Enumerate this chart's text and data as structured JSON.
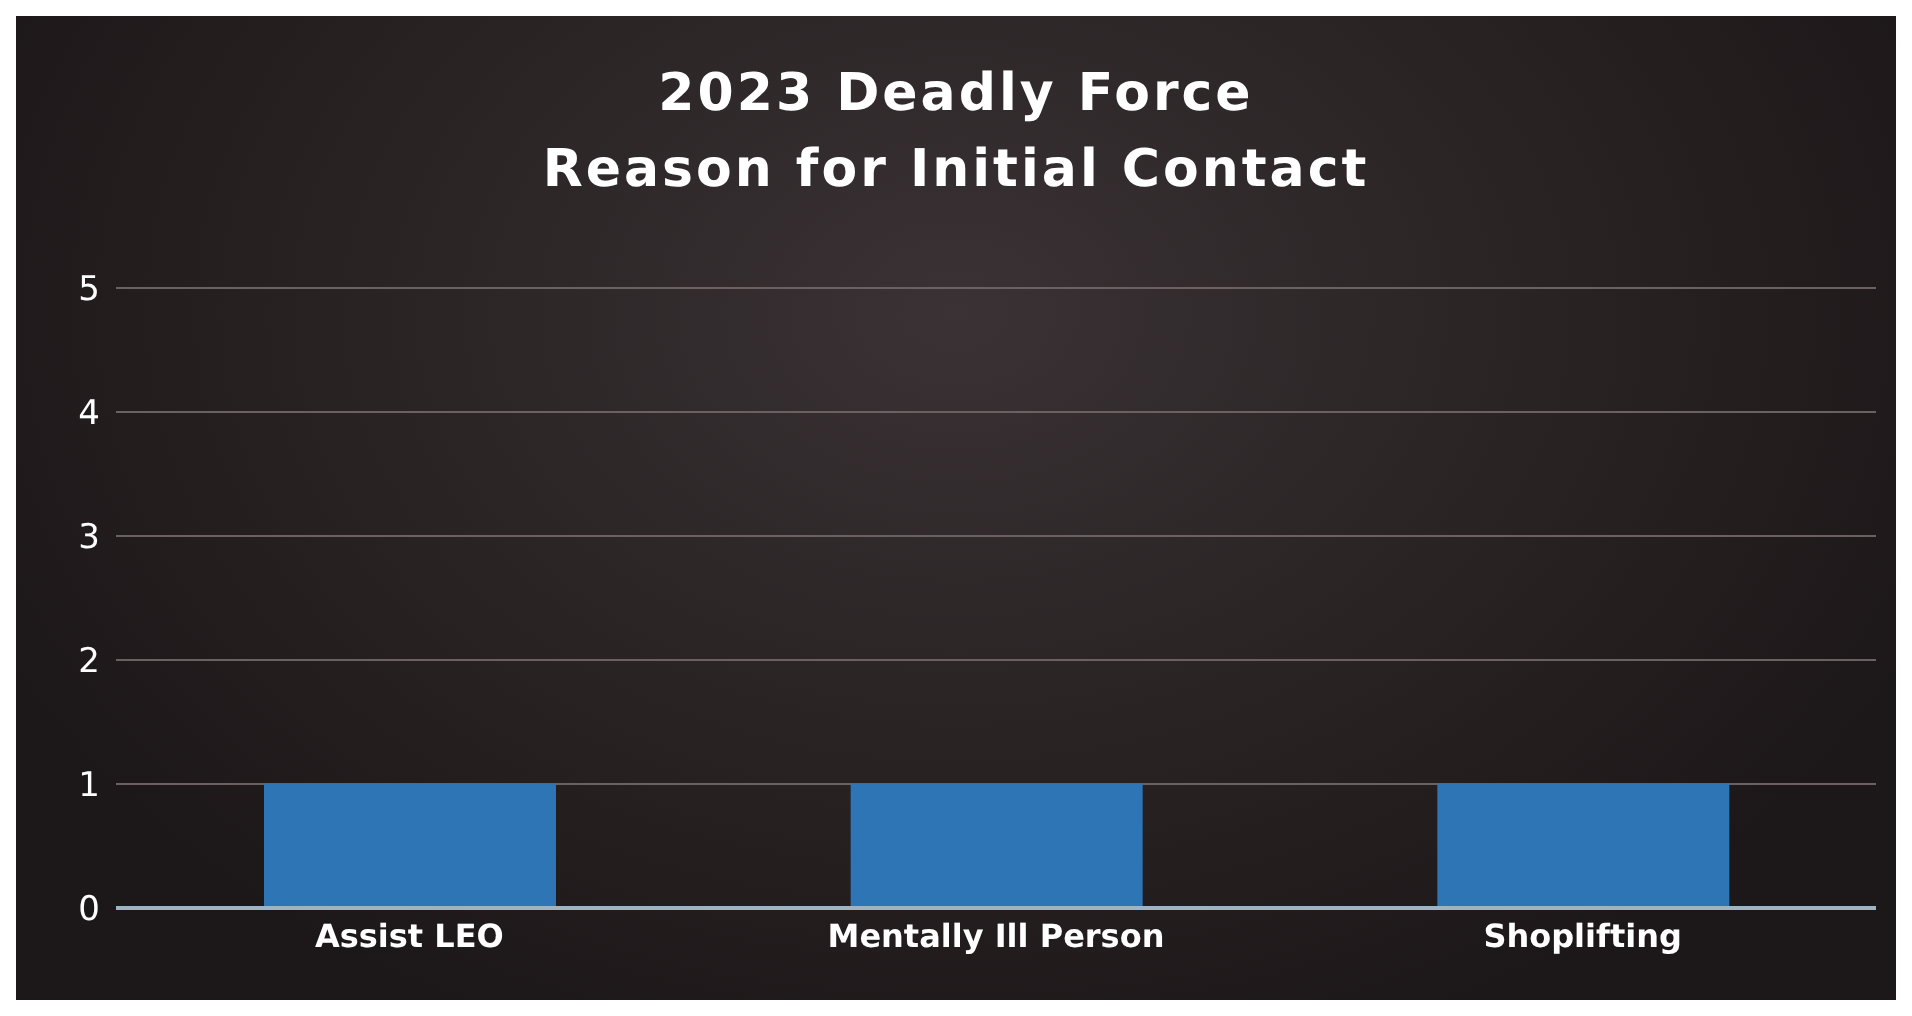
{
  "chart_data": {
    "type": "bar",
    "title": "2023 Deadly Force\nReason for Initial Contact",
    "categories": [
      "Assist LEO",
      "Mentally Ill Person",
      "Shoplifting"
    ],
    "values": [
      1,
      1,
      1
    ],
    "color": "#2e75b6",
    "ylim": [
      0,
      5
    ],
    "yticks": [
      0,
      1,
      2,
      3,
      4,
      5
    ],
    "grid": "y",
    "legend": false
  }
}
